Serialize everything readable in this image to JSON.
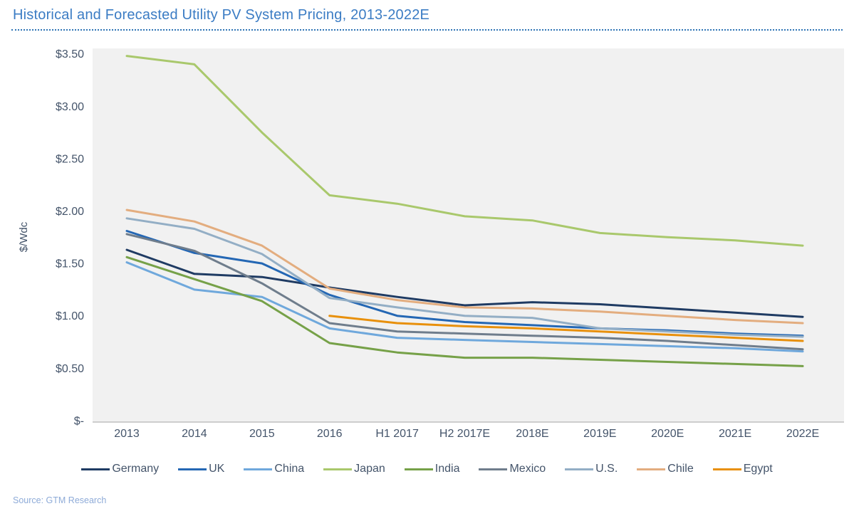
{
  "page": {
    "title": "Historical and Forecasted Utility PV System Pricing, 2013-2022E",
    "source": "Source: GTM Research"
  },
  "colors": {
    "title_blue": "#3b7cc4",
    "divider_blue": "#2e74b5",
    "axis_text": "#44546a",
    "source_text": "#8eabd8",
    "plot_background": "#f1f1f1",
    "axis_line": "#bfbfbf"
  },
  "chart_data": {
    "type": "line",
    "title": "Historical and Forecasted Utility PV System Pricing, 2013-2022E",
    "xlabel": "",
    "ylabel": "$/Wdc",
    "ylim": [
      0,
      3.5
    ],
    "ytick_step": 0.5,
    "ytick_labels": [
      "$-",
      "$0.50",
      "$1.00",
      "$1.50",
      "$2.00",
      "$2.50",
      "$3.00",
      "$3.50"
    ],
    "grid": false,
    "legend_position": "bottom",
    "categories": [
      "2013",
      "2014",
      "2015",
      "2016",
      "H1 2017",
      "H2 2017E",
      "2018E",
      "2019E",
      "2020E",
      "2021E",
      "2022E"
    ],
    "series": [
      {
        "name": "Germany",
        "color": "#1f3b63",
        "values": [
          1.63,
          1.4,
          1.37,
          1.27,
          1.18,
          1.1,
          1.13,
          1.11,
          1.07,
          1.03,
          0.99
        ]
      },
      {
        "name": "UK",
        "color": "#2467b4",
        "values": [
          1.81,
          1.6,
          1.5,
          1.2,
          1.0,
          0.94,
          0.91,
          0.88,
          0.86,
          0.83,
          0.81
        ]
      },
      {
        "name": "China",
        "color": "#6fa8dc",
        "values": [
          1.51,
          1.25,
          1.18,
          0.88,
          0.79,
          0.77,
          0.75,
          0.73,
          0.71,
          0.69,
          0.66
        ]
      },
      {
        "name": "Japan",
        "color": "#a9c86c",
        "values": [
          3.48,
          3.4,
          2.75,
          2.15,
          2.07,
          1.95,
          1.91,
          1.79,
          1.75,
          1.72,
          1.67
        ]
      },
      {
        "name": "India",
        "color": "#76a148",
        "values": [
          1.56,
          1.35,
          1.14,
          0.74,
          0.65,
          0.6,
          0.6,
          0.58,
          0.56,
          0.54,
          0.52
        ]
      },
      {
        "name": "Mexico",
        "color": "#6f7d8c",
        "values": [
          1.78,
          1.62,
          1.31,
          0.93,
          0.85,
          0.83,
          0.81,
          0.79,
          0.76,
          0.72,
          0.68
        ]
      },
      {
        "name": "U.S.",
        "color": "#93aec5",
        "values": [
          1.93,
          1.83,
          1.59,
          1.17,
          1.08,
          1.0,
          0.98,
          0.88,
          0.85,
          0.82,
          0.8
        ]
      },
      {
        "name": "Chile",
        "color": "#e3ad7f",
        "values": [
          2.01,
          1.9,
          1.67,
          1.26,
          1.15,
          1.08,
          1.07,
          1.04,
          1.0,
          0.96,
          0.93
        ]
      },
      {
        "name": "Egypt",
        "color": "#e8900c",
        "values": [
          null,
          null,
          null,
          1.0,
          0.93,
          0.9,
          0.88,
          0.85,
          0.82,
          0.79,
          0.76
        ]
      }
    ]
  }
}
